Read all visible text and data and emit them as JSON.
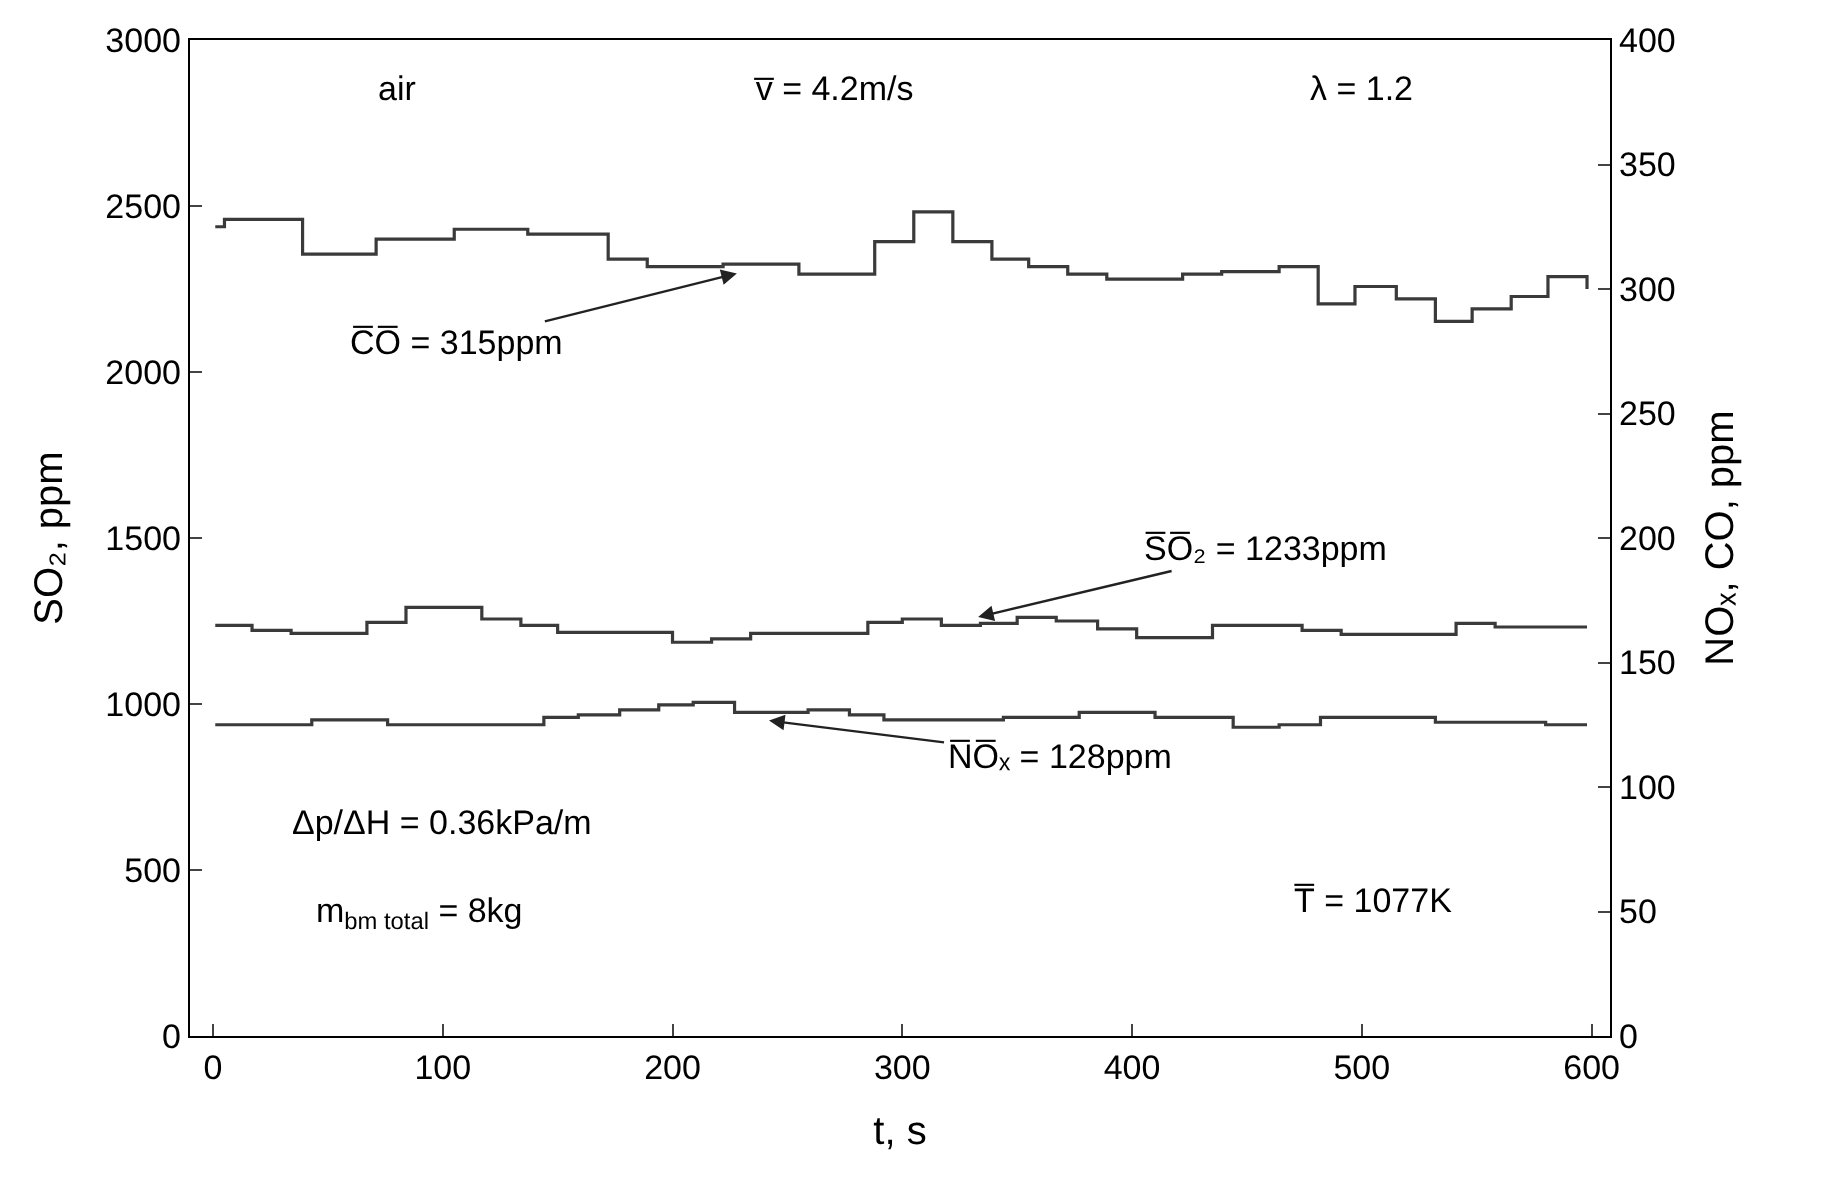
{
  "chart_data": {
    "type": "step",
    "xlabel": "t, s",
    "ylabel": "SO₂, ppm",
    "y2label": "NOₓ, CO, ppm",
    "xlim": [
      -10,
      608
    ],
    "xticks": [
      0,
      100,
      200,
      300,
      400,
      500,
      600
    ],
    "ylim": [
      0,
      3000
    ],
    "yticks": [
      0,
      500,
      1000,
      1500,
      2000,
      2500,
      3000
    ],
    "y2lim": [
      0,
      400
    ],
    "y2ticks": [
      0,
      50,
      100,
      150,
      200,
      250,
      300,
      350,
      400
    ],
    "line_style": "solid",
    "marker": "none",
    "series": [
      {
        "color": "#3a3a3a",
        "x": [
          1,
          17,
          34,
          67,
          84,
          117,
          134,
          150,
          200,
          217,
          234,
          285,
          300,
          317,
          334,
          350,
          367,
          385,
          402,
          435,
          474,
          491,
          541,
          558,
          598
        ],
        "values": [
          1237,
          1222,
          1213,
          1246,
          1291,
          1256,
          1237,
          1216,
          1186,
          1196,
          1213,
          1246,
          1256,
          1237,
          1243,
          1261,
          1250,
          1226,
          1200,
          1237,
          1222,
          1210,
          1243,
          1232,
          1232
        ]
      },
      {
        "color": "#3a3a3a",
        "axis": "y2",
        "x": [
          1,
          5,
          39,
          71,
          105,
          137,
          172,
          189,
          222,
          255,
          288,
          305,
          322,
          339,
          355,
          372,
          389,
          422,
          439,
          464,
          481,
          497,
          515,
          532,
          548,
          565,
          581,
          598
        ],
        "values": [
          325,
          328,
          314,
          320,
          324,
          322,
          312,
          309,
          310,
          306,
          319,
          331,
          319,
          312,
          309,
          306,
          304,
          306,
          307,
          309,
          294,
          301,
          296,
          287,
          292,
          297,
          305,
          300
        ]
      },
      {
        "color": "#3a3a3a",
        "axis": "y2",
        "x": [
          1,
          43,
          76,
          144,
          159,
          177,
          194,
          209,
          227,
          259,
          277,
          292,
          344,
          377,
          410,
          444,
          464,
          482,
          532,
          580,
          598
        ],
        "values": [
          125,
          127,
          125,
          128,
          129,
          131,
          133,
          134,
          130,
          131,
          129,
          127,
          128,
          130,
          128,
          124,
          125,
          128,
          126,
          125,
          125
        ]
      }
    ],
    "annotations": [
      {
        "text": "C̅O̅ = 315ppm",
        "x": 228,
        "y": 2297
      },
      {
        "text": "S̅O̅₂ = 1233ppm",
        "x": 333,
        "y": 1262
      },
      {
        "text": "N̅O̅ₓ = 128ppm",
        "x": 242,
        "y": 950
      },
      "air",
      "v̅ = 4.2m/s",
      "λ = 1.2",
      "Δp/ΔH = 0.36kPa/m",
      "m$_{bm total}$ = 8kg",
      "T̅ = 1077K"
    ]
  }
}
